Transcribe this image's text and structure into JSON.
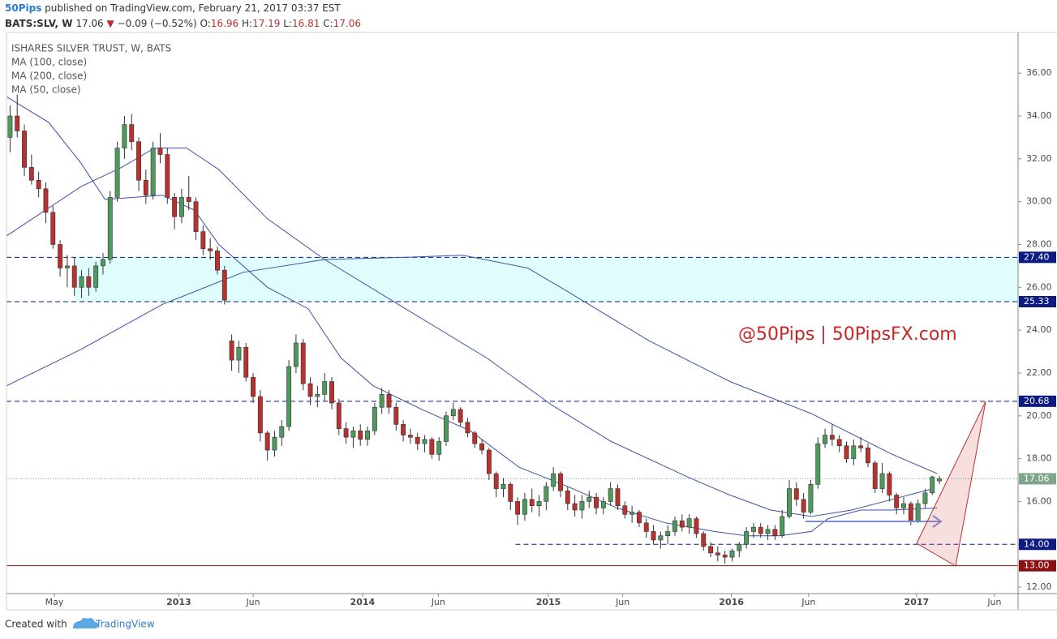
{
  "header": {
    "author": "50Pips",
    "published": "published on TradingView.com, February 21, 2017 03:37 EST",
    "symbol": "BATS:SLV, W",
    "last": "17.06",
    "arrow": "▼",
    "change": "−0.09 (−0.52%)",
    "ohlc": [
      {
        "label": "O:",
        "value": "16.96"
      },
      {
        "label": "H:",
        "value": "17.19"
      },
      {
        "label": "L:",
        "value": "16.81"
      },
      {
        "label": "C:",
        "value": "17.06"
      }
    ]
  },
  "chart_data": {
    "type": "candlestick",
    "title": "ISHARES SILVER TRUST, W, BATS",
    "annotation": "@50Pips | 50PipsFX.com",
    "up_color": "#4e9a5e",
    "down_color": "#b8312f",
    "candles": [
      [
        33.0,
        34.5,
        32.3,
        34.0
      ],
      [
        34.0,
        35.0,
        33.0,
        33.3
      ],
      [
        33.3,
        33.6,
        31.2,
        31.6
      ],
      [
        31.6,
        32.2,
        30.8,
        31.0
      ],
      [
        31.0,
        31.4,
        30.2,
        30.6
      ],
      [
        30.6,
        30.9,
        29.0,
        29.5
      ],
      [
        29.5,
        29.8,
        27.8,
        28.0
      ],
      [
        28.0,
        28.2,
        26.5,
        26.9
      ],
      [
        26.9,
        27.5,
        26.0,
        27.0
      ],
      [
        27.0,
        27.4,
        25.6,
        26.0
      ],
      [
        26.0,
        26.8,
        25.5,
        26.5
      ],
      [
        26.5,
        26.9,
        25.6,
        26.0
      ],
      [
        26.0,
        27.2,
        25.8,
        27.0
      ],
      [
        27.0,
        27.6,
        26.6,
        27.3
      ],
      [
        27.3,
        30.5,
        27.1,
        30.2
      ],
      [
        30.2,
        32.8,
        30.0,
        32.5
      ],
      [
        32.5,
        34.0,
        32.0,
        33.6
      ],
      [
        33.6,
        34.1,
        32.4,
        32.8
      ],
      [
        32.8,
        33.0,
        30.5,
        31.0
      ],
      [
        31.0,
        31.5,
        29.9,
        30.3
      ],
      [
        30.3,
        32.8,
        30.1,
        32.5
      ],
      [
        32.5,
        33.2,
        31.8,
        32.2
      ],
      [
        32.2,
        32.5,
        29.9,
        30.2
      ],
      [
        30.2,
        30.4,
        28.7,
        29.3
      ],
      [
        29.3,
        30.6,
        29.0,
        30.2
      ],
      [
        30.2,
        31.2,
        29.6,
        30.0
      ],
      [
        30.0,
        30.2,
        28.2,
        28.6
      ],
      [
        28.6,
        28.9,
        27.5,
        27.8
      ],
      [
        27.8,
        28.3,
        27.3,
        27.7
      ],
      [
        27.7,
        27.9,
        26.6,
        26.8
      ],
      [
        26.8,
        27.0,
        25.2,
        25.4
      ],
      [
        23.5,
        23.8,
        22.1,
        22.6
      ],
      [
        22.6,
        23.5,
        22.0,
        23.2
      ],
      [
        23.2,
        23.4,
        21.6,
        21.8
      ],
      [
        21.8,
        22.0,
        20.6,
        20.9
      ],
      [
        20.9,
        21.2,
        18.8,
        19.2
      ],
      [
        19.2,
        19.3,
        17.9,
        18.4
      ],
      [
        18.4,
        19.3,
        18.1,
        19.0
      ],
      [
        19.0,
        19.8,
        18.6,
        19.5
      ],
      [
        19.5,
        22.6,
        19.3,
        22.3
      ],
      [
        22.3,
        23.8,
        22.0,
        23.4
      ],
      [
        23.4,
        23.6,
        21.2,
        21.5
      ],
      [
        21.5,
        21.8,
        20.5,
        20.9
      ],
      [
        20.9,
        21.4,
        20.4,
        21.0
      ],
      [
        21.0,
        22.0,
        20.7,
        21.6
      ],
      [
        21.6,
        21.8,
        20.3,
        20.6
      ],
      [
        20.6,
        20.8,
        19.1,
        19.4
      ],
      [
        19.4,
        19.7,
        18.7,
        19.0
      ],
      [
        19.0,
        19.5,
        18.5,
        19.3
      ],
      [
        19.3,
        19.6,
        18.6,
        18.9
      ],
      [
        18.9,
        19.5,
        18.6,
        19.3
      ],
      [
        19.3,
        20.6,
        19.1,
        20.4
      ],
      [
        20.4,
        21.3,
        20.1,
        21.0
      ],
      [
        21.0,
        21.2,
        20.1,
        20.4
      ],
      [
        20.4,
        20.6,
        19.3,
        19.6
      ],
      [
        19.6,
        19.8,
        18.8,
        19.1
      ],
      [
        19.1,
        19.4,
        18.7,
        19.0
      ],
      [
        19.0,
        19.2,
        18.4,
        18.7
      ],
      [
        18.7,
        19.1,
        18.3,
        18.9
      ],
      [
        18.9,
        19.0,
        18.0,
        18.2
      ],
      [
        18.2,
        19.0,
        17.9,
        18.8
      ],
      [
        18.8,
        20.2,
        18.6,
        20.0
      ],
      [
        20.0,
        20.6,
        19.8,
        20.3
      ],
      [
        20.3,
        20.4,
        19.5,
        19.7
      ],
      [
        19.7,
        19.9,
        19.0,
        19.2
      ],
      [
        19.2,
        19.3,
        18.5,
        18.7
      ],
      [
        18.7,
        18.9,
        18.2,
        18.4
      ],
      [
        18.4,
        18.5,
        17.0,
        17.3
      ],
      [
        17.3,
        17.4,
        16.2,
        16.6
      ],
      [
        16.6,
        17.1,
        16.2,
        16.8
      ],
      [
        16.8,
        16.9,
        15.6,
        16.0
      ],
      [
        16.0,
        16.2,
        14.9,
        15.4
      ],
      [
        15.4,
        16.4,
        15.1,
        16.1
      ],
      [
        16.1,
        16.6,
        15.5,
        15.8
      ],
      [
        15.8,
        16.3,
        15.3,
        16.0
      ],
      [
        16.0,
        16.9,
        15.6,
        16.7
      ],
      [
        16.7,
        17.6,
        16.5,
        17.3
      ],
      [
        17.3,
        17.4,
        16.2,
        16.5
      ],
      [
        16.5,
        16.7,
        15.6,
        15.9
      ],
      [
        15.9,
        16.3,
        15.3,
        15.6
      ],
      [
        15.6,
        16.3,
        15.2,
        16.0
      ],
      [
        16.0,
        16.5,
        15.7,
        16.2
      ],
      [
        16.2,
        16.4,
        15.4,
        15.7
      ],
      [
        15.7,
        16.2,
        15.4,
        16.0
      ],
      [
        16.0,
        16.9,
        15.8,
        16.6
      ],
      [
        16.6,
        16.8,
        15.6,
        15.8
      ],
      [
        15.8,
        16.0,
        15.2,
        15.4
      ],
      [
        15.4,
        15.8,
        15.0,
        15.5
      ],
      [
        15.5,
        15.6,
        14.8,
        15.0
      ],
      [
        15.0,
        15.2,
        14.3,
        14.6
      ],
      [
        14.6,
        14.9,
        14.0,
        14.2
      ],
      [
        14.2,
        14.6,
        13.8,
        14.4
      ],
      [
        14.4,
        14.9,
        14.0,
        14.6
      ],
      [
        14.6,
        15.3,
        14.4,
        15.1
      ],
      [
        15.1,
        15.4,
        14.6,
        14.8
      ],
      [
        14.8,
        15.4,
        14.5,
        15.2
      ],
      [
        15.2,
        15.3,
        14.3,
        14.5
      ],
      [
        14.5,
        14.6,
        13.7,
        13.9
      ],
      [
        13.9,
        14.1,
        13.4,
        13.6
      ],
      [
        13.6,
        13.9,
        13.2,
        13.5
      ],
      [
        13.5,
        13.7,
        13.1,
        13.4
      ],
      [
        13.4,
        13.8,
        13.2,
        13.7
      ],
      [
        13.7,
        14.1,
        13.4,
        14.0
      ],
      [
        14.0,
        14.8,
        13.8,
        14.6
      ],
      [
        14.6,
        15.0,
        14.3,
        14.8
      ],
      [
        14.8,
        15.0,
        14.3,
        14.5
      ],
      [
        14.5,
        14.9,
        14.2,
        14.7
      ],
      [
        14.7,
        14.9,
        14.2,
        14.4
      ],
      [
        14.4,
        15.6,
        14.3,
        15.3
      ],
      [
        15.3,
        17.0,
        15.2,
        16.6
      ],
      [
        16.6,
        16.9,
        15.8,
        16.1
      ],
      [
        16.1,
        16.4,
        15.2,
        15.5
      ],
      [
        15.5,
        17.0,
        15.4,
        16.8
      ],
      [
        16.8,
        19.0,
        16.6,
        18.7
      ],
      [
        18.7,
        19.4,
        18.5,
        19.1
      ],
      [
        19.1,
        19.6,
        18.6,
        18.9
      ],
      [
        18.9,
        19.1,
        18.3,
        18.6
      ],
      [
        18.6,
        18.8,
        17.8,
        18.0
      ],
      [
        18.0,
        18.9,
        17.7,
        18.6
      ],
      [
        18.6,
        19.0,
        18.3,
        18.5
      ],
      [
        18.5,
        18.7,
        17.6,
        17.8
      ],
      [
        17.8,
        17.9,
        16.4,
        16.6
      ],
      [
        16.6,
        17.8,
        16.4,
        17.3
      ],
      [
        17.3,
        17.4,
        16.0,
        16.3
      ],
      [
        16.3,
        16.4,
        15.4,
        15.7
      ],
      [
        15.7,
        16.2,
        15.4,
        15.9
      ],
      [
        15.9,
        16.0,
        14.9,
        15.1
      ],
      [
        15.1,
        16.1,
        15.0,
        15.9
      ],
      [
        15.9,
        16.6,
        15.7,
        16.4
      ],
      [
        16.4,
        17.2,
        16.3,
        17.15
      ],
      [
        16.96,
        17.19,
        16.81,
        17.06
      ]
    ],
    "series": [
      {
        "name": "MA (100, close)",
        "color": "#3f4fa8",
        "x": [
          -0.5,
          9.9,
          15.6,
          20.2,
          24.7,
          29.2,
          36.0,
          44.0,
          55.3,
          66.7,
          75.8,
          84.1,
          95.1,
          100.7,
          106.4,
          112.1,
          117.7,
          123.4,
          129.1
        ],
        "values": [
          28.4,
          30.7,
          31.6,
          32.5,
          32.5,
          31.5,
          29.2,
          27.3,
          25.0,
          22.7,
          20.5,
          18.8,
          17.1,
          16.3,
          15.6,
          15.3,
          15.6,
          16.1,
          16.6
        ]
      },
      {
        "name": "MA (200, close)",
        "color": "#3f4fa8",
        "x": [
          -0.5,
          9.9,
          21.3,
          32.6,
          44.0,
          55.3,
          63.3,
          72.4,
          78.0,
          89.4,
          100.7,
          112.1,
          123.4,
          129.7
        ],
        "values": [
          21.4,
          23.1,
          25.2,
          26.7,
          27.3,
          27.4,
          27.5,
          26.9,
          25.8,
          23.5,
          21.6,
          20.1,
          18.2,
          17.3
        ]
      },
      {
        "name": "MA (50, close)",
        "color": "#3f4fa8",
        "x": [
          -0.5,
          5.4,
          9.9,
          13.3,
          21.3,
          25.8,
          29.2,
          36.0,
          41.7,
          46.3,
          50.8,
          57.6,
          64.4,
          71.2,
          78.0,
          84.9,
          91.7,
          98.5,
          103.0,
          107.6,
          112.1,
          114.4,
          119.0,
          123.4,
          129.7
        ],
        "values": [
          34.9,
          33.7,
          31.8,
          30.1,
          30.3,
          29.6,
          28.0,
          26.0,
          25.0,
          22.7,
          21.4,
          20.3,
          19.3,
          17.6,
          16.7,
          15.7,
          15.0,
          14.6,
          14.4,
          14.4,
          14.6,
          15.2,
          15.6,
          15.6,
          15.7
        ]
      }
    ],
    "zone": {
      "low": 25.33,
      "high": 27.4,
      "start": 9.1,
      "color": "#e0fdfd"
    },
    "levels": [
      {
        "value": 27.4,
        "label": "27.40",
        "color": "#0d1a80",
        "style": "dashed"
      },
      {
        "value": 25.33,
        "label": "25.33",
        "color": "#0d1a80",
        "style": "dashed"
      },
      {
        "value": 20.68,
        "label": "20.68",
        "color": "#0d1a80",
        "style": "dashed"
      },
      {
        "value": 17.06,
        "label": "17.06",
        "color": "#7fa68c",
        "style": "dotted"
      },
      {
        "value": 14.0,
        "label": "14.00",
        "color": "#0d1a80",
        "style": "dashed",
        "start": 70.7
      },
      {
        "value": 13.0,
        "label": "13.00",
        "color": "#8b1010",
        "style": "solid"
      }
    ],
    "xlim": [
      -0.5,
      141
    ],
    "xticks": [
      {
        "value": 6.2,
        "label": "May"
      },
      {
        "value": 23.6,
        "label": "2013"
      },
      {
        "value": 34.0,
        "label": "Jun"
      },
      {
        "value": 49.3,
        "label": "2014"
      },
      {
        "value": 59.9,
        "label": "Jun"
      },
      {
        "value": 75.3,
        "label": "2015"
      },
      {
        "value": 85.7,
        "label": "Jun"
      },
      {
        "value": 100.9,
        "label": "2016"
      },
      {
        "value": 111.7,
        "label": "Jun"
      },
      {
        "value": 126.8,
        "label": "2017"
      },
      {
        "value": 137.7,
        "label": "Jun"
      }
    ],
    "ylim": [
      11.7,
      37.9
    ],
    "yticks": [
      {
        "value": 12,
        "label": "12.00"
      },
      {
        "value": 14,
        "label": "14.00"
      },
      {
        "value": 16,
        "label": "16.00"
      },
      {
        "value": 18,
        "label": "18.00"
      },
      {
        "value": 20,
        "label": "20.00"
      },
      {
        "value": 22,
        "label": "22.00"
      },
      {
        "value": 24,
        "label": "24.00"
      },
      {
        "value": 26,
        "label": "26.00"
      },
      {
        "value": 28,
        "label": "28.00"
      },
      {
        "value": 30,
        "label": "30.00"
      },
      {
        "value": 32,
        "label": "32.00"
      },
      {
        "value": 34,
        "label": "34.00"
      },
      {
        "value": 36,
        "label": "36.00"
      }
    ]
  },
  "footer": {
    "created": "Created with",
    "brand": "TradingView"
  }
}
